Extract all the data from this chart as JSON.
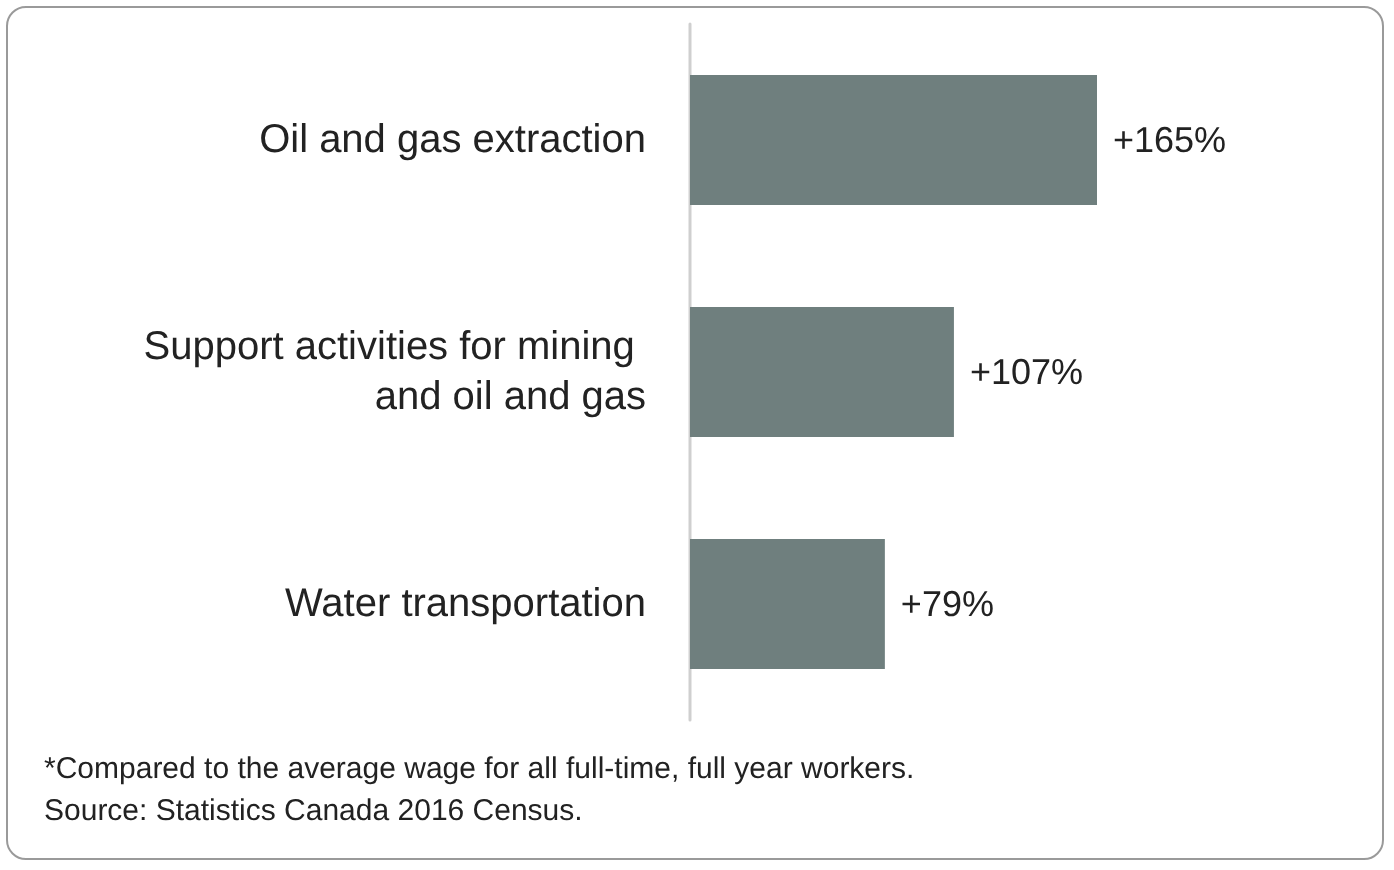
{
  "chart_data": {
    "type": "bar",
    "orientation": "horizontal",
    "categories": [
      "Oil and gas extraction",
      "Support activities for mining and oil and gas",
      "Water transportation"
    ],
    "values": [
      165,
      107,
      79
    ],
    "color": "#6f7f7e",
    "value_labels": [
      "+165%",
      "+107%",
      "+79%"
    ],
    "annotations": [
      "*Compared to the average wage for all full-time, full year workers.",
      "Source: Statistics Canada 2016 Census."
    ]
  }
}
